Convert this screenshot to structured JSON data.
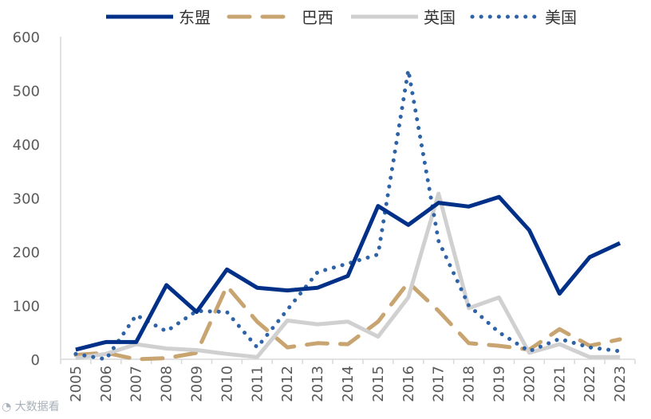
{
  "chart_data": {
    "type": "line",
    "x": [
      "2005",
      "2006",
      "2007",
      "2008",
      "2009",
      "2010",
      "2011",
      "2012",
      "2013",
      "2014",
      "2015",
      "2016",
      "2017",
      "2018",
      "2019",
      "2020",
      "2021",
      "2022",
      "2023"
    ],
    "ylim": [
      0,
      600
    ],
    "yticks": [
      0,
      100,
      200,
      300,
      400,
      500,
      600
    ],
    "grid": false,
    "legend_position": "top",
    "series": [
      {
        "name": "东盟",
        "color": "#003087",
        "style": "solid",
        "values": [
          18,
          32,
          32,
          138,
          88,
          167,
          133,
          128,
          133,
          155,
          285,
          250,
          291,
          284,
          302,
          240,
          122,
          190,
          216
        ]
      },
      {
        "name": "巴西",
        "color": "#c8a470",
        "style": "dash",
        "values": [
          8,
          12,
          0,
          2,
          12,
          136,
          70,
          22,
          30,
          28,
          70,
          143,
          90,
          30,
          25,
          18,
          56,
          25,
          37
        ]
      },
      {
        "name": "英国",
        "color": "#d0d0d0",
        "style": "solid",
        "values": [
          2,
          10,
          28,
          20,
          17,
          10,
          4,
          72,
          65,
          70,
          42,
          115,
          308,
          95,
          115,
          12,
          28,
          4,
          4
        ]
      },
      {
        "name": "美国",
        "color": "#2e63a8",
        "style": "dot",
        "values": [
          10,
          0,
          82,
          52,
          90,
          88,
          22,
          92,
          162,
          178,
          195,
          538,
          220,
          100,
          50,
          15,
          38,
          22,
          15
        ]
      }
    ]
  },
  "watermark": "大数据看"
}
